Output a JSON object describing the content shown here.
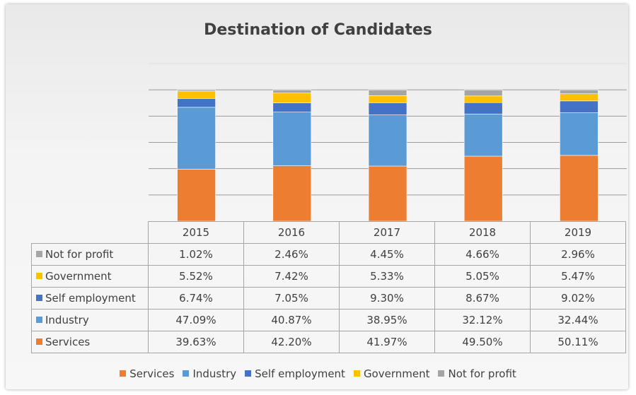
{
  "chart_data": {
    "type": "bar",
    "stacked": true,
    "percent_stacked": true,
    "title": "Destination of Candidates",
    "categories": [
      "2015",
      "2016",
      "2017",
      "2018",
      "2019"
    ],
    "series": [
      {
        "name": "Services",
        "color": "#ed7d31",
        "values": [
          39.63,
          42.2,
          41.97,
          49.5,
          50.11
        ],
        "labels": [
          "39.63%",
          "42.20%",
          "41.97%",
          "49.50%",
          "50.11%"
        ]
      },
      {
        "name": "Industry",
        "color": "#5b9bd5",
        "values": [
          47.09,
          40.87,
          38.95,
          32.12,
          32.44
        ],
        "labels": [
          "47.09%",
          "40.87%",
          "38.95%",
          "32.12%",
          "32.44%"
        ]
      },
      {
        "name": "Self employment",
        "color": "#4472c4",
        "values": [
          6.74,
          7.05,
          9.3,
          8.67,
          9.02
        ],
        "labels": [
          "6.74%",
          "7.05%",
          "9.30%",
          "8.67%",
          "9.02%"
        ]
      },
      {
        "name": "Government",
        "color": "#ffc000",
        "values": [
          5.52,
          7.42,
          5.33,
          5.05,
          5.47
        ],
        "labels": [
          "5.52%",
          "7.42%",
          "5.33%",
          "5.05%",
          "5.47%"
        ]
      },
      {
        "name": "Not for profit",
        "color": "#a5a5a5",
        "values": [
          1.02,
          2.46,
          4.45,
          4.66,
          2.96
        ],
        "labels": [
          "1.02%",
          "2.46%",
          "4.45%",
          "4.66%",
          "2.96%"
        ]
      }
    ],
    "table_row_order": [
      "Not for profit",
      "Government",
      "Self employment",
      "Industry",
      "Services"
    ],
    "legend_position": "bottom",
    "data_table": true,
    "grid": true,
    "ylim": [
      0,
      120
    ]
  }
}
